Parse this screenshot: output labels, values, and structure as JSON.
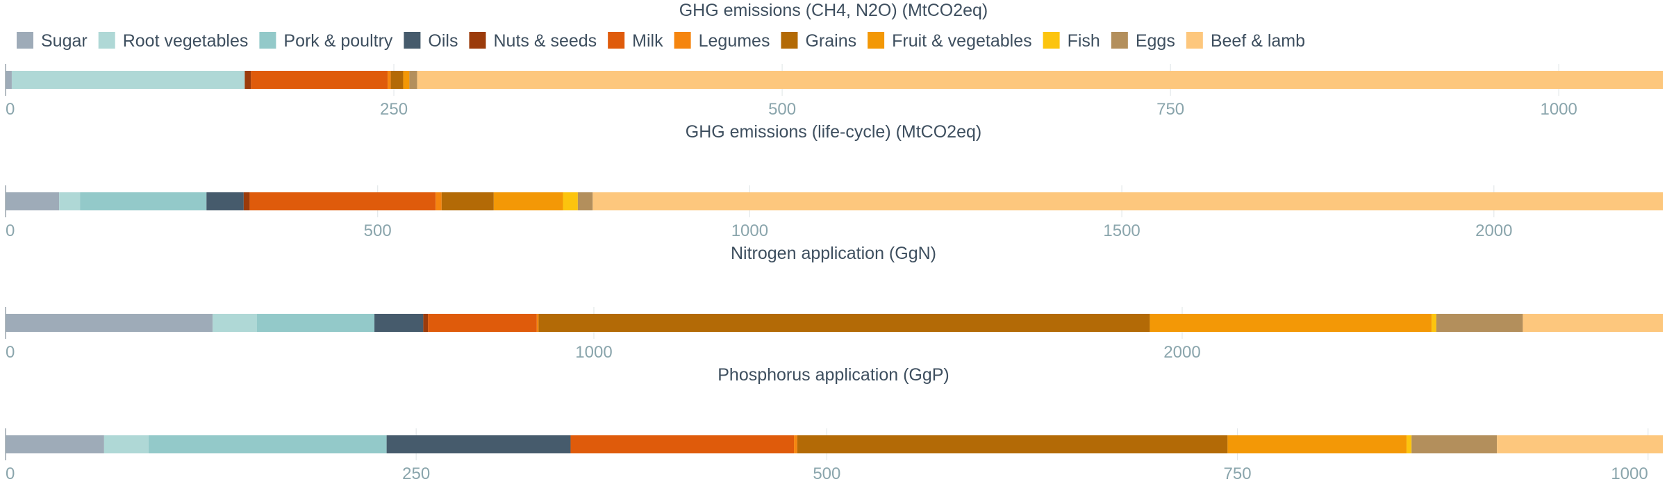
{
  "chart_data": {
    "type": "bar",
    "orientation": "horizontal-stacked",
    "legend_position": "top",
    "grid": true,
    "categories": [
      "Sugar",
      "Root vegetables",
      "Pork & poultry",
      "Oils",
      "Nuts & seeds",
      "Milk",
      "Legumes",
      "Grains",
      "Fruit & vegetables",
      "Fish",
      "Eggs",
      "Beef & lamb"
    ],
    "colors": [
      "#9eabb8",
      "#afd8d6",
      "#93c9c9",
      "#465b6c",
      "#9b3b0b",
      "#df5b0b",
      "#f5850f",
      "#b36a06",
      "#f39806",
      "#fcc40e",
      "#b38f5c",
      "#fdc77d"
    ],
    "panels": [
      {
        "title": "GHG emissions (CH4, N2O) (MtCO2eq)",
        "xlim": [
          0,
          1067
        ],
        "ticks": [
          0,
          250,
          500,
          750,
          1000
        ],
        "values": [
          4,
          150,
          0,
          0,
          4,
          88,
          2,
          8,
          4,
          0,
          5,
          802
        ]
      },
      {
        "title": "GHG emissions (life-cycle) (MtCO2eq)",
        "xlim": [
          0,
          2227
        ],
        "ticks": [
          0,
          500,
          1000,
          1500,
          2000
        ],
        "values": [
          72,
          28,
          170,
          50,
          8,
          250,
          8,
          70,
          93,
          20,
          20,
          1438
        ]
      },
      {
        "title": "Nitrogen application (GgN)",
        "xlim": [
          0,
          2817
        ],
        "ticks": [
          0,
          1000,
          2000
        ],
        "values": [
          352,
          75,
          200,
          83,
          8,
          185,
          3,
          1039,
          479,
          8,
          147,
          238
        ]
      },
      {
        "title": "Phosphorus application (GgP)",
        "xlim": [
          0,
          1009
        ],
        "ticks": [
          0,
          250,
          500,
          750,
          1000
        ],
        "values": [
          60,
          27,
          145,
          112,
          0,
          136,
          2,
          262,
          109,
          3,
          52,
          101
        ]
      }
    ]
  }
}
